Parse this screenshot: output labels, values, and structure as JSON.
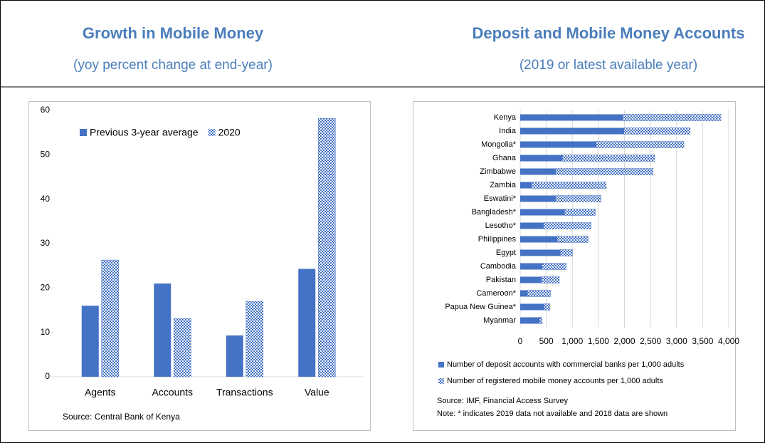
{
  "chart_data": [
    {
      "type": "bar",
      "title": "Growth in Mobile Money",
      "subtitle": "(yoy percent change at end-year)",
      "categories": [
        "Agents",
        "Accounts",
        "Transactions",
        "Value"
      ],
      "series": [
        {
          "name": "Previous 3-year average",
          "color": "#4472c4",
          "values": [
            16,
            21,
            9.3,
            24.3
          ]
        },
        {
          "name": "2020",
          "color": "#4472c4",
          "pattern": "checker",
          "values": [
            26.3,
            13.1,
            17,
            58.2
          ]
        }
      ],
      "ylim": [
        0,
        60
      ],
      "yticks": [
        0,
        10,
        20,
        30,
        40,
        50,
        60
      ],
      "grid": false,
      "legend": "upper left",
      "source": "Source: Central Bank of Kenya"
    },
    {
      "type": "barh",
      "stacked": true,
      "title": "Deposit and Mobile Money Accounts",
      "subtitle": "(2019 or latest available year)",
      "categories": [
        "Kenya",
        "India",
        "Mongolia*",
        "Ghana",
        "Zimbabwe",
        "Zambia",
        "Eswatini*",
        "Bangladesh*",
        "Lesotho*",
        "Philippines",
        "Egypt",
        "Cambodia",
        "Pakistan",
        "Cameroon*",
        "Papua New Guinea*",
        "Myanmar"
      ],
      "series": [
        {
          "name": "Number of deposit accounts with commercial banks per 1,000 adults",
          "color": "#4472c4",
          "values": [
            1970,
            1990,
            1460,
            810,
            680,
            220,
            680,
            850,
            450,
            710,
            770,
            420,
            410,
            140,
            460,
            370
          ]
        },
        {
          "name": "Number of registered mobile money accounts per 1,000 adults",
          "color": "#4472c4",
          "pattern": "checker",
          "values": [
            1880,
            1270,
            1680,
            1770,
            1870,
            1430,
            870,
            590,
            910,
            590,
            230,
            460,
            340,
            440,
            110,
            50
          ]
        }
      ],
      "xlim": [
        0,
        4000
      ],
      "xticks": [
        0,
        500,
        {
          "value": 1000,
          "label": "1,000"
        },
        {
          "value": 1500,
          "label": "1,500"
        },
        {
          "value": 2000,
          "label": "2,000"
        },
        {
          "value": 2500,
          "label": "2,500"
        },
        {
          "value": 3000,
          "label": "3,000"
        },
        {
          "value": 3500,
          "label": "3,500"
        },
        {
          "value": 4000,
          "label": "4,000"
        }
      ],
      "grid": true,
      "legend": "bottom",
      "source": "Source:  IMF, Financial Access Survey",
      "note": "Note: * indicates 2019 data not available and 2018 data are shown"
    }
  ]
}
